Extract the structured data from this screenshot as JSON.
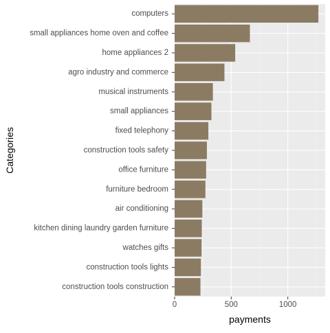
{
  "chart_data": {
    "type": "bar",
    "orientation": "horizontal",
    "categories": [
      "computers",
      "small appliances home oven and coffee",
      "home appliances 2",
      "agro industry and commerce",
      "musical instruments",
      "small appliances",
      "fixed telephony",
      "construction tools safety",
      "office furniture",
      "furniture bedroom",
      "air conditioning",
      "kitchen dining laundry garden furniture",
      "watches gifts",
      "construction tools lights",
      "construction tools construction"
    ],
    "values": [
      1270,
      665,
      535,
      440,
      338,
      325,
      298,
      285,
      278,
      272,
      245,
      240,
      238,
      232,
      228
    ],
    "xlabel": "payments",
    "ylabel": "Categories",
    "xlim": [
      0,
      1330
    ],
    "xticks": [
      0,
      500,
      1000
    ],
    "xtick_labels": [
      "0",
      "500",
      "1000"
    ],
    "grid": true,
    "colors": {
      "bar": "#8c7b63",
      "panel": "#ebebeb",
      "grid_major": "#ffffff",
      "grid_minor": "#f5f5f5",
      "tick_text": "#4d4d4d",
      "axis_title": "#000000"
    }
  }
}
